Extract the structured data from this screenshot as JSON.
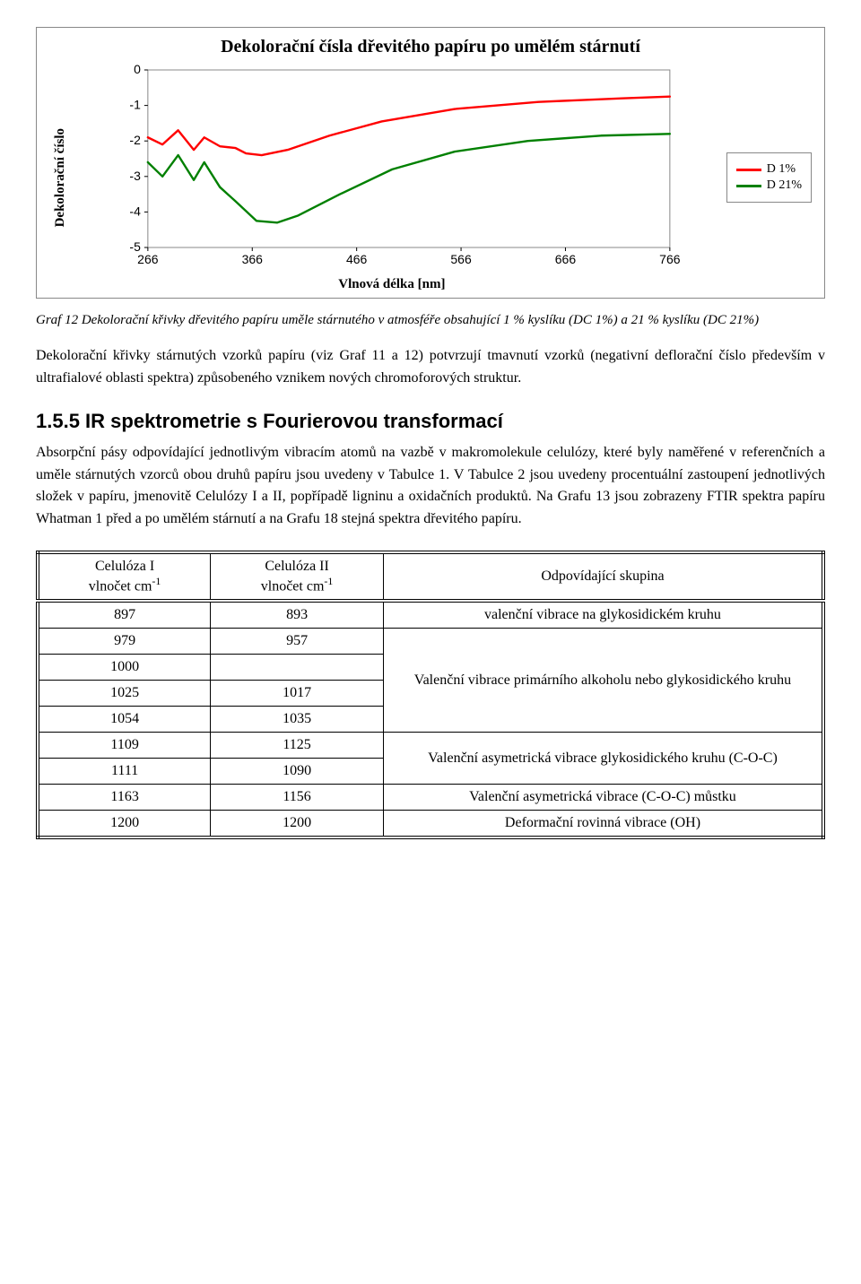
{
  "chart": {
    "type": "line",
    "title": "Dekolorační čísla dřevitého papíru po umělém stárnutí",
    "ylabel": "Dekolorační číslo",
    "xlabel": "Vlnová délka [nm]",
    "xlim": [
      266,
      766
    ],
    "xticks": [
      266,
      366,
      466,
      566,
      666,
      766
    ],
    "ylim": [
      -5,
      0
    ],
    "yticks": [
      0,
      -1,
      -2,
      -3,
      -4,
      -5
    ],
    "background_color": "#ffffff",
    "plot_border_color": "#888888",
    "gridline_color": "#000000",
    "axis_fontsize": 14,
    "label_fontsize": 15,
    "title_fontsize": 20,
    "line_width": 2.4,
    "series": [
      {
        "name": "D 1%",
        "color": "#ff0000",
        "x": [
          266,
          280,
          295,
          310,
          320,
          335,
          350,
          360,
          375,
          400,
          440,
          490,
          560,
          640,
          720,
          766
        ],
        "y": [
          -1.9,
          -2.1,
          -1.7,
          -2.25,
          -1.9,
          -2.15,
          -2.2,
          -2.35,
          -2.4,
          -2.25,
          -1.85,
          -1.45,
          -1.1,
          -0.9,
          -0.8,
          -0.75
        ]
      },
      {
        "name": "D 21%",
        "color": "#008000",
        "x": [
          266,
          280,
          295,
          310,
          320,
          335,
          350,
          370,
          390,
          410,
          450,
          500,
          560,
          630,
          700,
          766
        ],
        "y": [
          -2.6,
          -3.0,
          -2.4,
          -3.1,
          -2.6,
          -3.3,
          -3.7,
          -4.25,
          -4.3,
          -4.1,
          -3.5,
          -2.8,
          -2.3,
          -2.0,
          -1.85,
          -1.8
        ]
      }
    ],
    "legend": {
      "position": "right",
      "border_color": "#888888",
      "items": [
        "D 1%",
        "D 21%"
      ]
    }
  },
  "caption": "Graf 12 Dekolorační křivky dřevitého papíru uměle stárnutého v atmosféře obsahující 1 % kyslíku (DC 1%) a 21 % kyslíku (DC 21%)",
  "paragraph1": "Dekolorační křivky stárnutých vzorků papíru (viz Graf 11 a 12) potvrzují tmavnutí vzorků (negativní deflorační číslo především v ultrafialové oblasti spektra) způsobeného vznikem nových chromoforových struktur.",
  "section_heading": "1.5.5 IR spektrometrie s Fourierovou transformací",
  "paragraph2": "Absorpční pásy odpovídající jednotlivým vibracím atomů na vazbě v makromolekule celulózy, které byly naměřené v referenčních a uměle stárnutých vzorců obou druhů papíru jsou uvedeny v Tabulce 1. V Tabulce 2 jsou uvedeny procentuální zastoupení jednotlivých složek v papíru, jmenovitě Celulózy I a II, popřípadě ligninu a oxidačních produktů. Na Grafu 13 jsou zobrazeny FTIR spektra papíru Whatman 1 před a po umělém stárnutí a na Grafu 18 stejná spektra dřevitého papíru.",
  "table": {
    "columns": [
      {
        "line1": "Celulóza I",
        "line2": "vlnočet cm",
        "sup": "-1",
        "width": "22%"
      },
      {
        "line1": "Celulóza II",
        "line2": "vlnočet cm",
        "sup": "-1",
        "width": "22%"
      },
      {
        "line1": "Odpovídající skupina",
        "line2": "",
        "sup": "",
        "width": "56%"
      }
    ],
    "rows": [
      {
        "c1": "897",
        "c2": "893",
        "group": "valenční vibrace na glykosidickém kruhu",
        "rowspan": 1
      },
      {
        "c1": "979",
        "c2": "957",
        "group": "Valenční vibrace primárního alkoholu nebo glykosidického kruhu",
        "rowspan": 4
      },
      {
        "c1": "1000",
        "c2": ""
      },
      {
        "c1": "1025",
        "c2": "1017"
      },
      {
        "c1": "1054",
        "c2": "1035"
      },
      {
        "c1": "1109",
        "c2": "1125",
        "group": "Valenční asymetrická vibrace glykosidického kruhu (C-O-C)",
        "rowspan": 2
      },
      {
        "c1": "1111",
        "c2": "1090"
      },
      {
        "c1": "1163",
        "c2": "1156",
        "group": "Valenční asymetrická vibrace (C-O-C) můstku",
        "rowspan": 1
      },
      {
        "c1": "1200",
        "c2": "1200",
        "group": "Deformační rovinná vibrace (OH)",
        "rowspan": 1
      }
    ]
  }
}
